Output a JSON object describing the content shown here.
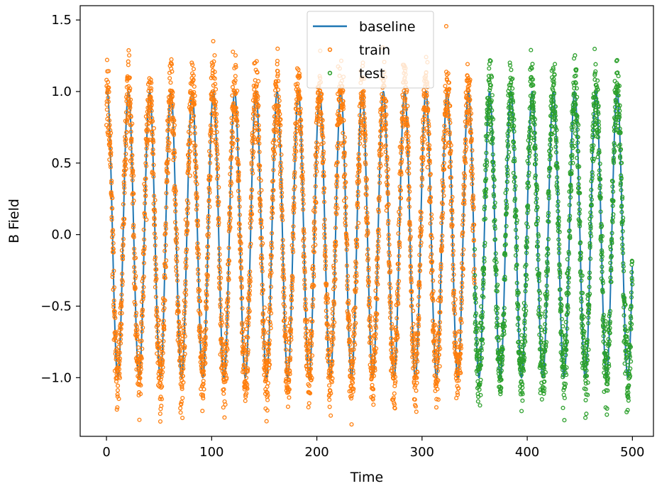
{
  "chart_data": {
    "type": "scatter",
    "title": "",
    "xlabel": "Time",
    "ylabel": "B Field",
    "xlim": [
      -25,
      520
    ],
    "ylim": [
      -1.41,
      1.6
    ],
    "xticks": [
      0,
      100,
      200,
      300,
      400,
      500
    ],
    "yticks": [
      -1.0,
      -0.5,
      0.0,
      0.5,
      1.0,
      1.5
    ],
    "ytick_labels": [
      "−1.0",
      "−0.5",
      "0.0",
      "0.5",
      "1.0",
      "1.5"
    ],
    "grid": false,
    "legend_position": "top-center",
    "signal": {
      "time_start": 0,
      "time_end": 500,
      "period": 20.2,
      "amplitude": 1.0,
      "noise_std": 0.13,
      "train_end": 350
    },
    "series": [
      {
        "name": "baseline",
        "kind": "line",
        "color": "#1f77b4"
      },
      {
        "name": "train",
        "kind": "scatter",
        "color": "#ff7f0e",
        "x_range": [
          0,
          350
        ]
      },
      {
        "name": "test",
        "kind": "scatter",
        "color": "#2ca02c",
        "x_range": [
          350,
          500
        ]
      }
    ]
  }
}
